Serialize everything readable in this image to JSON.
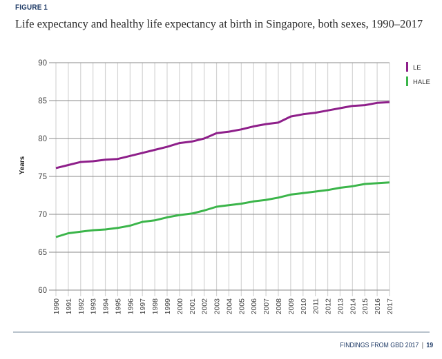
{
  "figure": {
    "label": "FIGURE 1",
    "title": "Life expectancy and healthy life expectancy at birth in Singapore, both sexes, 1990–2017"
  },
  "footer": {
    "text": "FINDINGS FROM GBD 2017",
    "separator": "|",
    "page": "19"
  },
  "chart_data": {
    "type": "line",
    "title": "Life expectancy and healthy life expectancy at birth in Singapore, both sexes, 1990–2017",
    "xlabel": "",
    "ylabel": "Years",
    "ylim": [
      60,
      90
    ],
    "yticks": [
      60,
      65,
      70,
      75,
      80,
      85,
      90
    ],
    "grid": true,
    "legend_position": "top-right",
    "x": [
      "1990",
      "1991",
      "1992",
      "1993",
      "1994",
      "1995",
      "1996",
      "1997",
      "1998",
      "1999",
      "2000",
      "2001",
      "2002",
      "2003",
      "2004",
      "2005",
      "2006",
      "2007",
      "2008",
      "2009",
      "2010",
      "2011",
      "2012",
      "2013",
      "2014",
      "2015",
      "2016",
      "2017"
    ],
    "series": [
      {
        "name": "LE",
        "color": "#8e1f8a",
        "values": [
          76.1,
          76.5,
          76.9,
          77.0,
          77.2,
          77.3,
          77.7,
          78.1,
          78.5,
          78.9,
          79.4,
          79.6,
          80.0,
          80.7,
          80.9,
          81.2,
          81.6,
          81.9,
          82.1,
          82.9,
          83.2,
          83.4,
          83.7,
          84.0,
          84.3,
          84.4,
          84.7,
          84.8
        ]
      },
      {
        "name": "HALE",
        "color": "#3bb54a",
        "values": [
          67.0,
          67.5,
          67.7,
          67.9,
          68.0,
          68.2,
          68.5,
          69.0,
          69.2,
          69.6,
          69.9,
          70.1,
          70.5,
          71.0,
          71.2,
          71.4,
          71.7,
          71.9,
          72.2,
          72.6,
          72.8,
          73.0,
          73.2,
          73.5,
          73.7,
          74.0,
          74.1,
          74.2
        ]
      }
    ]
  }
}
